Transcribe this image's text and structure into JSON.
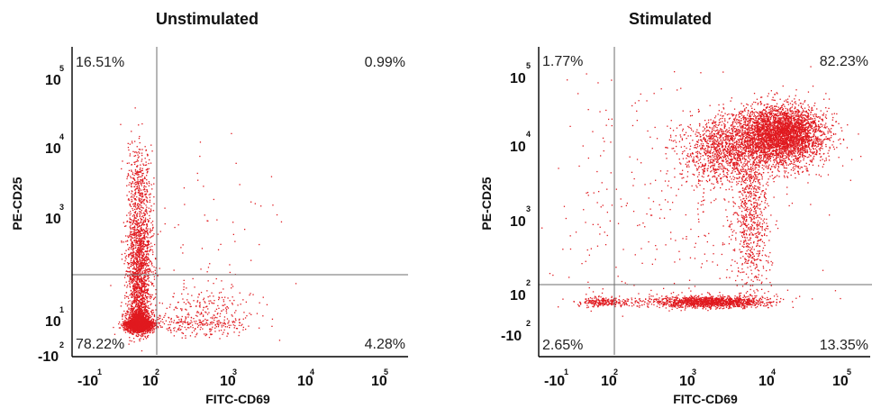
{
  "colors": {
    "event": "#e0191f",
    "axis": "#000000",
    "gate": "#6e6e6e"
  },
  "tick_glyph": {
    "base": "10",
    "neg_prefix": "-"
  },
  "chart_data": [
    {
      "type": "scatter",
      "title": "Unstimulated",
      "xlabel": "FITC-CD69",
      "ylabel": "PE-CD25",
      "scale": "biexponential (log)",
      "xlim": [
        -100,
        100000
      ],
      "ylim": [
        -100,
        100000
      ],
      "x_ticks": [
        {
          "base": "-10",
          "exp": "1"
        },
        {
          "base": "10",
          "exp": "2"
        },
        {
          "base": "10",
          "exp": "3"
        },
        {
          "base": "10",
          "exp": "4"
        },
        {
          "base": "10",
          "exp": "5"
        }
      ],
      "y_ticks": [
        {
          "base": "-10",
          "exp": "2"
        },
        {
          "base": "10",
          "exp": "1"
        },
        {
          "base": "10",
          "exp": "3"
        },
        {
          "base": "10",
          "exp": "4"
        },
        {
          "base": "10",
          "exp": "5"
        }
      ],
      "gate": {
        "x": 100,
        "y": 250
      },
      "quadrants": {
        "upper_left": "16.51%",
        "upper_right": "0.99%",
        "lower_left": "78.22%",
        "lower_right": "4.28%"
      },
      "populations": [
        {
          "name": "",
          "n": 2600,
          "x_center": 40,
          "y_center": 5,
          "x_spread_log": 0.12,
          "y_spread_log": 0.15
        },
        {
          "name": "",
          "n": 1700,
          "x_center": 40,
          "y_center": 120,
          "x_spread_log": 0.12,
          "y_spread_log": 0.6
        },
        {
          "name": "",
          "n": 300,
          "x_center": 40,
          "y_center": 3000,
          "x_spread_log": 0.12,
          "y_spread_log": 0.35
        },
        {
          "name": "",
          "n": 420,
          "x_center": 400,
          "y_center": 10,
          "x_spread_log": 0.3,
          "y_spread_log": 0.3
        },
        {
          "name": "",
          "n": 60,
          "x_center": 400,
          "y_center": 800,
          "x_spread_log": 0.55,
          "y_spread_log": 0.6
        }
      ]
    },
    {
      "type": "scatter",
      "title": "Stimulated",
      "xlabel": "FITC-CD69",
      "ylabel": "PE-CD25",
      "scale": "biexponential (log)",
      "xlim": [
        -100,
        100000
      ],
      "ylim": [
        -100,
        100000
      ],
      "x_ticks": [
        {
          "base": "-10",
          "exp": "1"
        },
        {
          "base": "10",
          "exp": "2"
        },
        {
          "base": "10",
          "exp": "3"
        },
        {
          "base": "10",
          "exp": "4"
        },
        {
          "base": "10",
          "exp": "5"
        }
      ],
      "y_ticks": [
        {
          "base": "-10",
          "exp": "2"
        },
        {
          "base": "10",
          "exp": "2"
        },
        {
          "base": "10",
          "exp": "3"
        },
        {
          "base": "10",
          "exp": "4"
        },
        {
          "base": "10",
          "exp": "5"
        }
      ],
      "gate": {
        "x": 100,
        "y": 60
      },
      "quadrants": {
        "upper_left": "1.77%",
        "upper_right": "82.23%",
        "lower_left": "2.65%",
        "lower_right": "13.35%"
      },
      "populations": [
        {
          "name": "",
          "n": 3600,
          "x_center": 12000,
          "y_center": 15000,
          "x_spread_log": 0.28,
          "y_spread_log": 0.2
        },
        {
          "name": "",
          "n": 1400,
          "x_center": 2500,
          "y_center": 9000,
          "x_spread_log": 0.3,
          "y_spread_log": 0.25
        },
        {
          "name": "",
          "n": 700,
          "x_center": 5000,
          "y_center": 1000,
          "x_spread_log": 0.12,
          "y_spread_log": 0.55
        },
        {
          "name": "",
          "n": 1300,
          "x_center": 1500,
          "y_center": 20,
          "x_spread_log": 0.35,
          "y_spread_log": 0.12
        },
        {
          "name": "",
          "n": 250,
          "x_center": 60,
          "y_center": 20,
          "x_spread_log": 0.3,
          "y_spread_log": 0.1
        },
        {
          "name": "",
          "n": 320,
          "x_center": 400,
          "y_center": 1500,
          "x_spread_log": 0.9,
          "y_spread_log": 0.9
        }
      ]
    }
  ]
}
